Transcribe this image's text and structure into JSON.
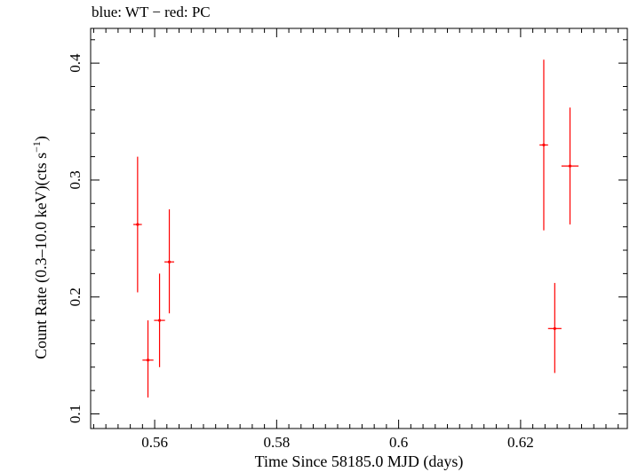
{
  "chart_data": {
    "type": "scatter",
    "title": "blue: WT − red: PC",
    "xlabel": "Time Since 58185.0 MJD (days)",
    "ylabel": "Count Rate (0.3–10.0 keV)(cts s",
    "ylabel_sup": "−1",
    "ylabel_close": ")",
    "xlim": [
      0.5495,
      0.6375
    ],
    "ylim": [
      0.0875,
      0.4297
    ],
    "x_ticks": [
      {
        "value": 0.56,
        "label": "0.56"
      },
      {
        "value": 0.58,
        "label": "0.58"
      },
      {
        "value": 0.6,
        "label": "0.6"
      },
      {
        "value": 0.62,
        "label": "0.62"
      }
    ],
    "x_minor_step": 0.002,
    "y_ticks": [
      {
        "value": 0.1,
        "label": "0.1"
      },
      {
        "value": 0.2,
        "label": "0.2"
      },
      {
        "value": 0.3,
        "label": "0.3"
      },
      {
        "value": 0.4,
        "label": "0.4"
      }
    ],
    "y_minor_step": 0.02,
    "series": [
      {
        "name": "PC",
        "color": "#ff0000",
        "points": [
          {
            "x": 0.5572,
            "y": 0.262,
            "xerr": 0.0007,
            "ylo": 0.204,
            "yhi": 0.32
          },
          {
            "x": 0.5589,
            "y": 0.146,
            "xerr": 0.0009,
            "ylo": 0.114,
            "yhi": 0.18
          },
          {
            "x": 0.5608,
            "y": 0.18,
            "xerr": 0.0009,
            "ylo": 0.14,
            "yhi": 0.22
          },
          {
            "x": 0.5624,
            "y": 0.23,
            "xerr": 0.0008,
            "ylo": 0.186,
            "yhi": 0.275
          },
          {
            "x": 0.6238,
            "y": 0.33,
            "xerr": 0.0007,
            "ylo": 0.257,
            "yhi": 0.403
          },
          {
            "x": 0.6256,
            "y": 0.173,
            "xerr": 0.0011,
            "ylo": 0.135,
            "yhi": 0.212
          },
          {
            "x": 0.6281,
            "y": 0.312,
            "xerr": 0.0014,
            "ylo": 0.262,
            "yhi": 0.362
          }
        ]
      },
      {
        "name": "WT",
        "color": "#0000ff",
        "points": []
      }
    ]
  }
}
